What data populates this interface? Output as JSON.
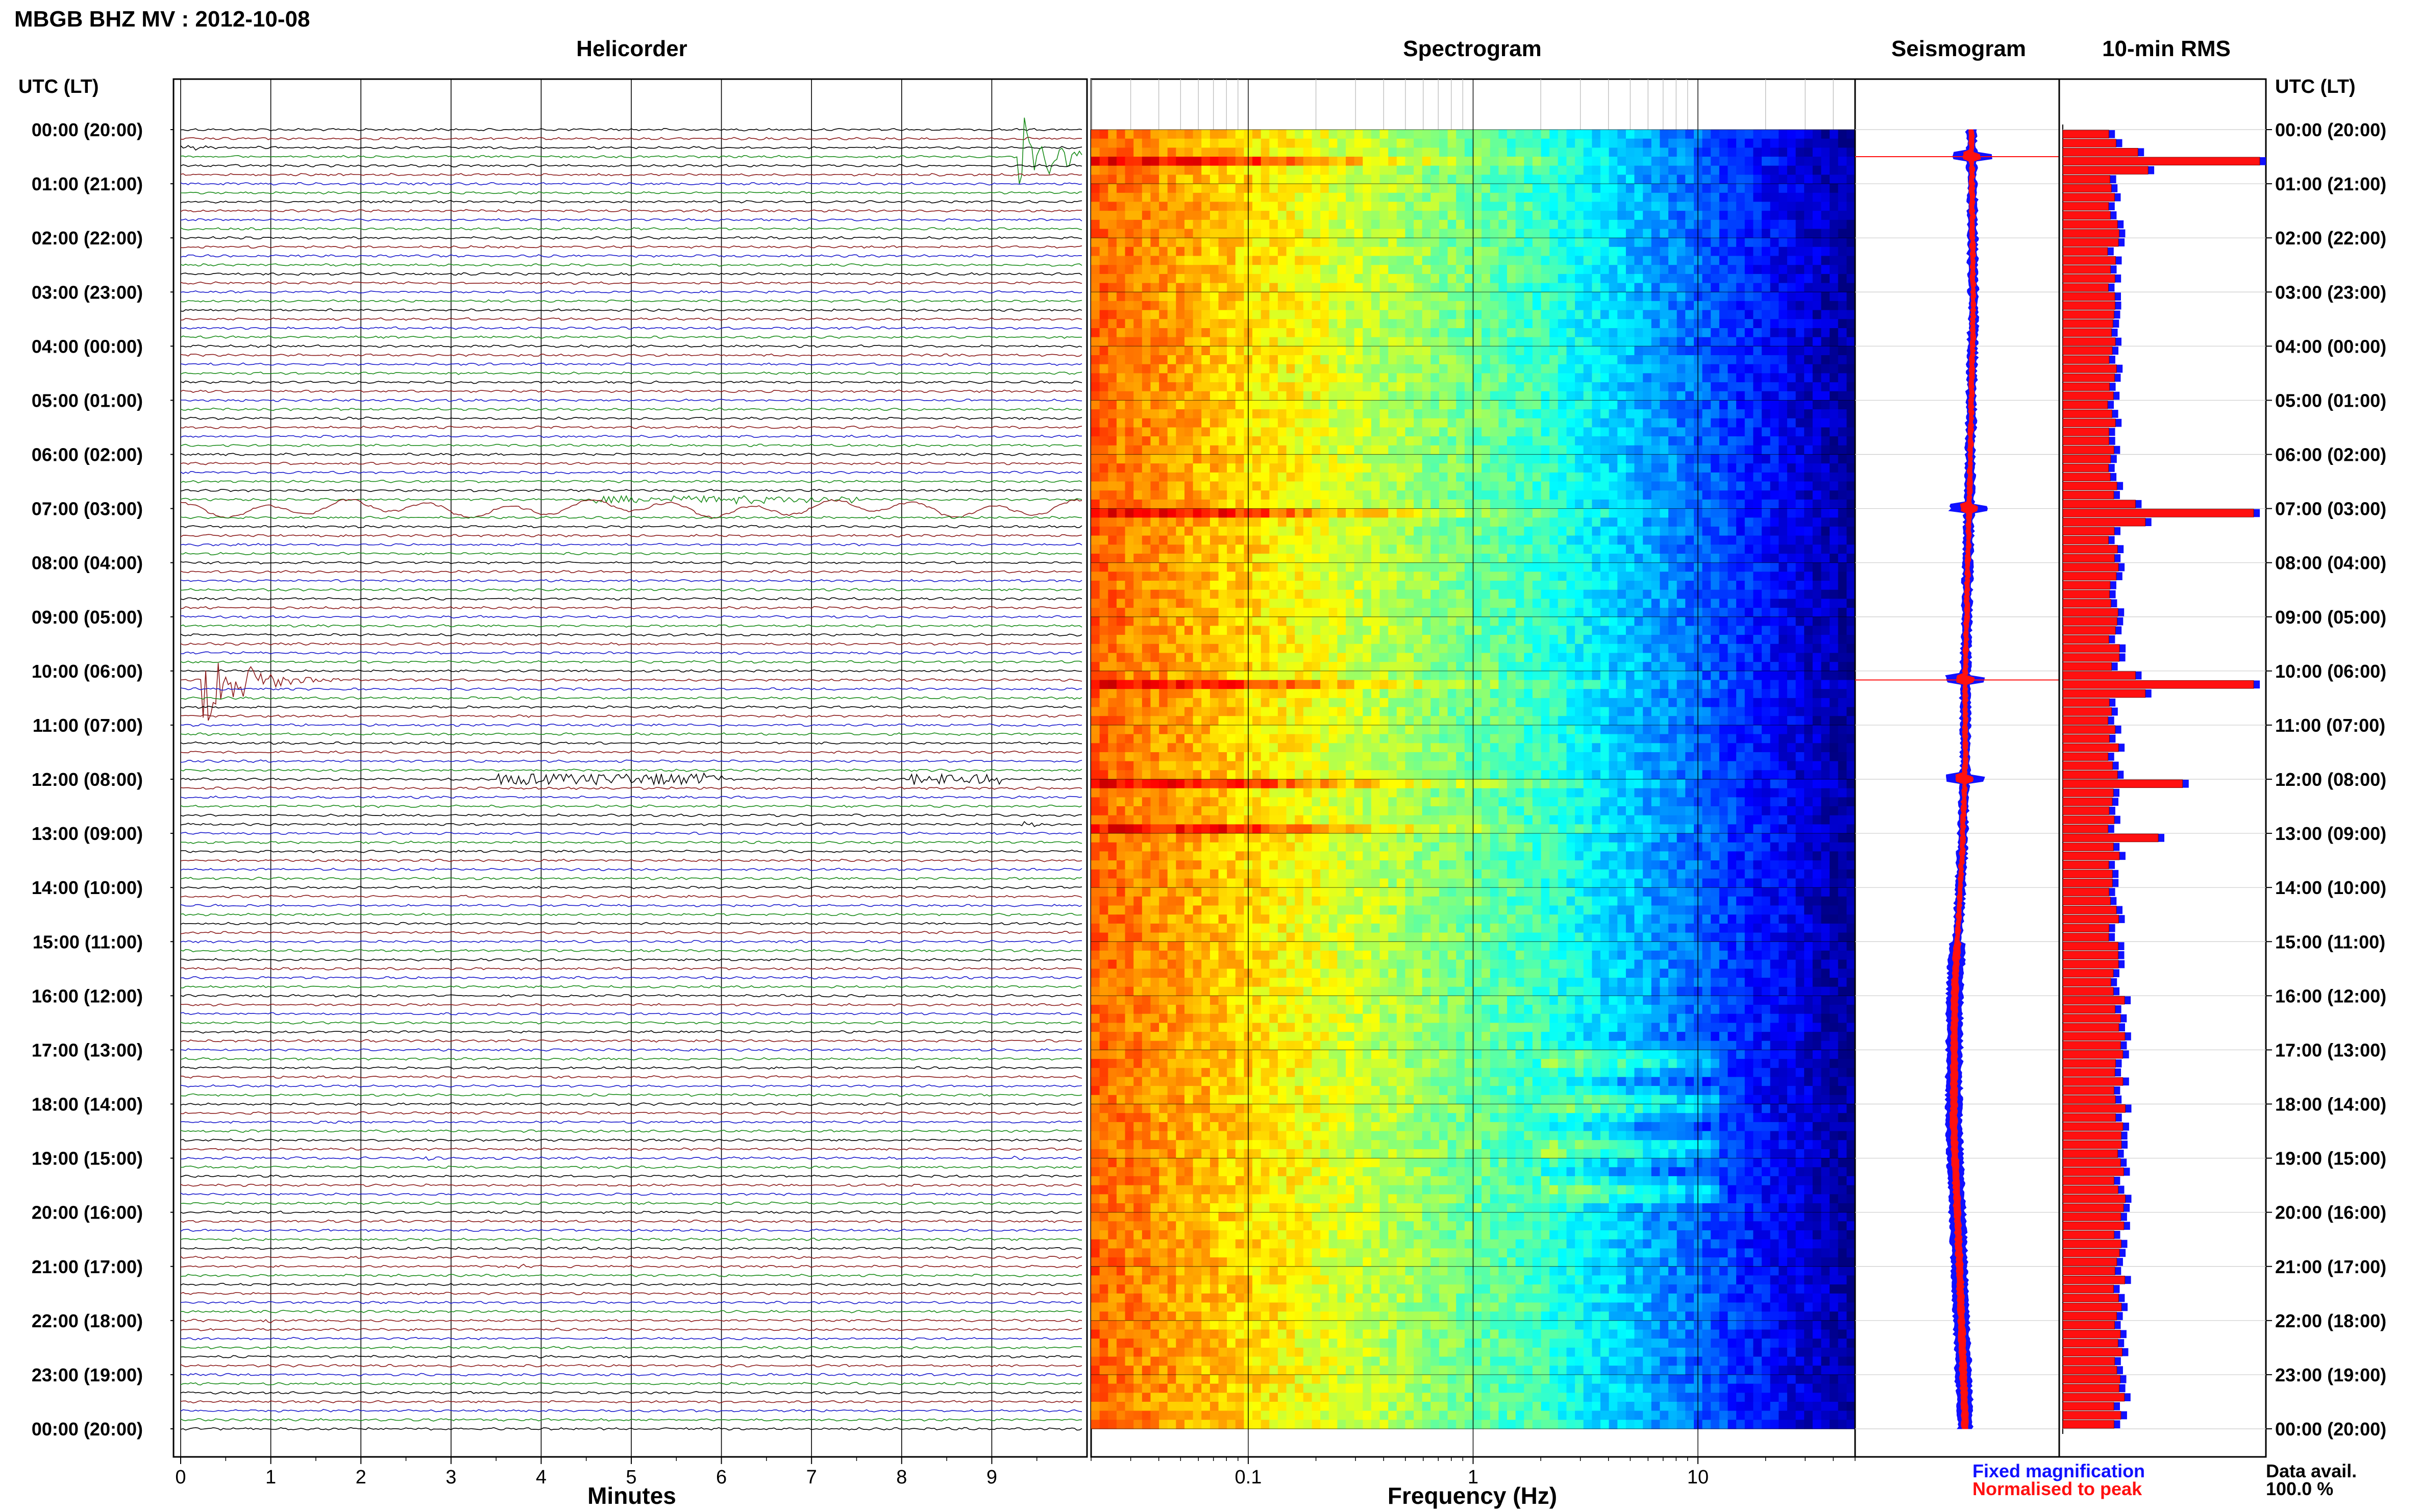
{
  "header": {
    "station_title": "MBGB BHZ MV : 2012-10-08",
    "utc_left": "UTC (LT)",
    "utc_right": "UTC (LT)"
  },
  "time_labels": [
    "00:00 (20:00)",
    "01:00 (21:00)",
    "02:00 (22:00)",
    "03:00 (23:00)",
    "04:00 (00:00)",
    "05:00 (01:00)",
    "06:00 (02:00)",
    "07:00 (03:00)",
    "08:00 (04:00)",
    "09:00 (05:00)",
    "10:00 (06:00)",
    "11:00 (07:00)",
    "12:00 (08:00)",
    "13:00 (09:00)",
    "14:00 (10:00)",
    "15:00 (11:00)",
    "16:00 (12:00)",
    "17:00 (13:00)",
    "18:00 (14:00)",
    "19:00 (15:00)",
    "20:00 (16:00)",
    "21:00 (17:00)",
    "22:00 (18:00)",
    "23:00 (19:00)",
    "00:00 (20:00)"
  ],
  "colors": {
    "trace_cycle": [
      "#000000",
      "#8b1a1a",
      "#1a1acc",
      "#1a8c1a"
    ],
    "fixed": "#1010ff",
    "normalised": "#ff1010"
  },
  "chart_data": [
    {
      "type": "line",
      "title": "Helicorder",
      "xlabel": "Minutes",
      "x_ticks": [
        "0",
        "1",
        "2",
        "3",
        "4",
        "5",
        "6",
        "7",
        "8",
        "9"
      ],
      "xlim": [
        0,
        10
      ],
      "rows": 144,
      "row_minutes": 10,
      "events": [
        {
          "row": 2,
          "start_min": 0.0,
          "amp": 0.5,
          "dur": 0.8,
          "color": "black"
        },
        {
          "row": 3,
          "start_min": 9.3,
          "amp": 6.0,
          "dur": 1.0,
          "color": "green"
        },
        {
          "row": 42,
          "start_min": 0.1,
          "amp": 1.4,
          "dur": 10,
          "color": "red",
          "type": "longperiod"
        },
        {
          "row": 41,
          "start_min": 4.5,
          "amp": 0.6,
          "dur": 3,
          "color": "green",
          "type": "burst"
        },
        {
          "row": 61,
          "start_min": 0.25,
          "amp": 6.0,
          "dur": 1.2,
          "color": "red"
        },
        {
          "row": 72,
          "start_min": 3.5,
          "amp": 1.0,
          "dur": 2.5,
          "color": "black",
          "type": "burst"
        },
        {
          "row": 72,
          "start_min": 8.1,
          "amp": 1.0,
          "dur": 1.0,
          "color": "black",
          "type": "burst"
        },
        {
          "row": 77,
          "start_min": 9.3,
          "amp": 0.6,
          "dur": 0.5,
          "color": "black"
        },
        {
          "row": 114,
          "start_min": 2.7,
          "amp": 0.5,
          "dur": 0.3,
          "color": "blue"
        },
        {
          "row": 114,
          "start_min": 9.2,
          "amp": 0.4,
          "dur": 0.3,
          "color": "blue"
        },
        {
          "row": 126,
          "start_min": 3.7,
          "amp": 0.4,
          "dur": 0.8,
          "color": "red"
        },
        {
          "row": 132,
          "start_min": 0.9,
          "amp": 0.4,
          "dur": 0.5,
          "color": "red"
        }
      ]
    },
    {
      "type": "heatmap",
      "title": "Spectrogram",
      "xlabel": "Frequency (Hz)",
      "x_scale": "log",
      "xlim": [
        0.02,
        50
      ],
      "x_ticks": [
        "0.1",
        "1",
        "10"
      ],
      "colormap": "jet",
      "rows": 144,
      "loud_rows": [
        3,
        42,
        61,
        72,
        77
      ]
    },
    {
      "type": "line",
      "title": "Seismogram",
      "series": [
        {
          "color": "blue",
          "desc_row_events": [
            3,
            42,
            61,
            72
          ]
        },
        {
          "color": "red"
        }
      ],
      "mean_offset_trace": [
        [
          0,
          0.15
        ],
        [
          20,
          0.18
        ],
        [
          40,
          0.12
        ],
        [
          60,
          0.05
        ],
        [
          70,
          0.05
        ],
        [
          80,
          0.0
        ],
        [
          95,
          -0.12
        ],
        [
          110,
          -0.14
        ],
        [
          125,
          -0.05
        ],
        [
          144,
          0.05
        ]
      ]
    },
    {
      "type": "bar",
      "title": "10-min RMS",
      "orientation": "horizontal",
      "rows": 144,
      "peaks": [
        {
          "row": 3,
          "value": 1.0
        },
        {
          "row": 42,
          "value": 0.97
        },
        {
          "row": 61,
          "value": 0.97
        },
        {
          "row": 72,
          "value": 0.62
        },
        {
          "row": 78,
          "value": 0.5
        }
      ],
      "baseline_value": 0.28
    }
  ],
  "legend": {
    "fixed_label": "Fixed magnification",
    "normalised_label": "Normalised to peak"
  },
  "data_avail": {
    "label": "Data avail.",
    "value": "100.0 %"
  }
}
